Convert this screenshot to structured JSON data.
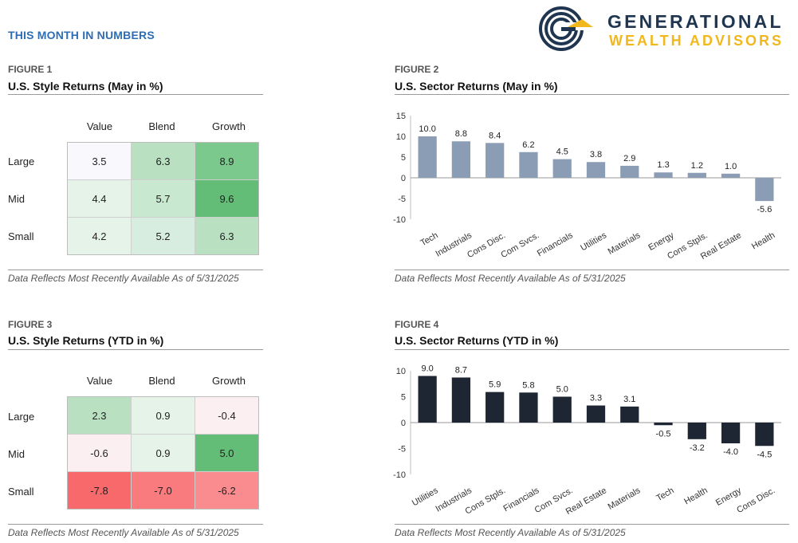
{
  "header": {
    "section_title": "THIS MONTH IN NUMBERS",
    "brand_line1": "GENERATIONAL",
    "brand_line2": "WEALTH ADVISORS"
  },
  "figures": {
    "fig1": {
      "label": "FIGURE 1",
      "title": "U.S. Style Returns (May in %)",
      "note": "Data Reflects Most Recently Available As of 5/31/2025"
    },
    "fig2": {
      "label": "FIGURE 2",
      "title": "U.S. Sector Returns (May in %)",
      "note": "Data Reflects Most Recently Available As of 5/31/2025"
    },
    "fig3": {
      "label": "FIGURE 3",
      "title": "U.S. Style Returns (YTD in %)",
      "note": "Data Reflects Most Recently Available As of 5/31/2025"
    },
    "fig4": {
      "label": "FIGURE 4",
      "title": "U.S. Sector Returns (YTD in %)",
      "note": "Data Reflects Most Recently Available As of 5/31/2025"
    }
  },
  "chart_data": [
    {
      "type": "heatmap",
      "title": "U.S. Style Returns (May in %)",
      "columns": [
        "Value",
        "Blend",
        "Growth"
      ],
      "rows": [
        "Large",
        "Mid",
        "Small"
      ],
      "values": [
        [
          3.5,
          6.3,
          8.9
        ],
        [
          4.4,
          5.7,
          9.6
        ],
        [
          4.2,
          5.2,
          6.3
        ]
      ],
      "labels": [
        [
          "3.5",
          "6.3",
          "8.9"
        ],
        [
          "4.4",
          "5.7",
          "9.6"
        ],
        [
          "4.2",
          "5.2",
          "6.3"
        ]
      ],
      "colors": [
        [
          "#f9f9fd",
          "#b8e0c1",
          "#7cc98d"
        ],
        [
          "#e6f3e8",
          "#c9e8d0",
          "#63bd77"
        ],
        [
          "#e6f3e8",
          "#d6ede0",
          "#b8e0c1"
        ]
      ]
    },
    {
      "type": "bar",
      "title": "U.S. Sector Returns (May in %)",
      "categories": [
        "Tech",
        "Industrials",
        "Cons Disc.",
        "Com Svcs.",
        "Financials",
        "Utilities",
        "Materials",
        "Energy",
        "Cons Stpls.",
        "Real Estate",
        "Health"
      ],
      "values": [
        10.0,
        8.8,
        8.4,
        6.2,
        4.5,
        3.8,
        2.9,
        1.3,
        1.2,
        1.0,
        -5.6
      ],
      "labels": [
        "10.0",
        "8.8",
        "8.4",
        "6.2",
        "4.5",
        "3.8",
        "2.9",
        "1.3",
        "1.2",
        "1.0",
        "-5.6"
      ],
      "yticks": [
        15,
        10,
        5,
        0,
        -5,
        -10
      ],
      "ylim": [
        -10,
        15
      ],
      "bar_color": "#8b9db5"
    },
    {
      "type": "heatmap",
      "title": "U.S. Style Returns (YTD in %)",
      "columns": [
        "Value",
        "Blend",
        "Growth"
      ],
      "rows": [
        "Large",
        "Mid",
        "Small"
      ],
      "values": [
        [
          2.3,
          0.9,
          -0.4
        ],
        [
          -0.6,
          0.9,
          5.0
        ],
        [
          -7.8,
          -7.0,
          -6.2
        ]
      ],
      "labels": [
        [
          "2.3",
          "0.9",
          "-0.4"
        ],
        [
          "-0.6",
          "0.9",
          "5.0"
        ],
        [
          "-7.8",
          "-7.0",
          "-6.2"
        ]
      ],
      "colors": [
        [
          "#b8e0c1",
          "#e6f3e8",
          "#fbeff2"
        ],
        [
          "#fbeff2",
          "#e6f3e8",
          "#63bd77"
        ],
        [
          "#f8696b",
          "#f97b7e",
          "#fa8c8f"
        ]
      ]
    },
    {
      "type": "bar",
      "title": "U.S. Sector Returns (YTD in %)",
      "categories": [
        "Utilities",
        "Industrials",
        "Cons Stpls.",
        "Financials",
        "Com Svcs.",
        "Real Estate",
        "Materials",
        "Tech",
        "Health",
        "Energy",
        "Cons Disc."
      ],
      "values": [
        9.0,
        8.7,
        5.9,
        5.8,
        5.0,
        3.3,
        3.1,
        -0.5,
        -3.2,
        -4.0,
        -4.5
      ],
      "labels": [
        "9.0",
        "8.7",
        "5.9",
        "5.8",
        "5.0",
        "3.3",
        "3.1",
        "-0.5",
        "-3.2",
        "-4.0",
        "-4.5"
      ],
      "yticks": [
        10,
        5,
        0,
        -5,
        -10
      ],
      "ylim": [
        -10,
        10
      ],
      "bar_color": "#1f2633"
    }
  ]
}
